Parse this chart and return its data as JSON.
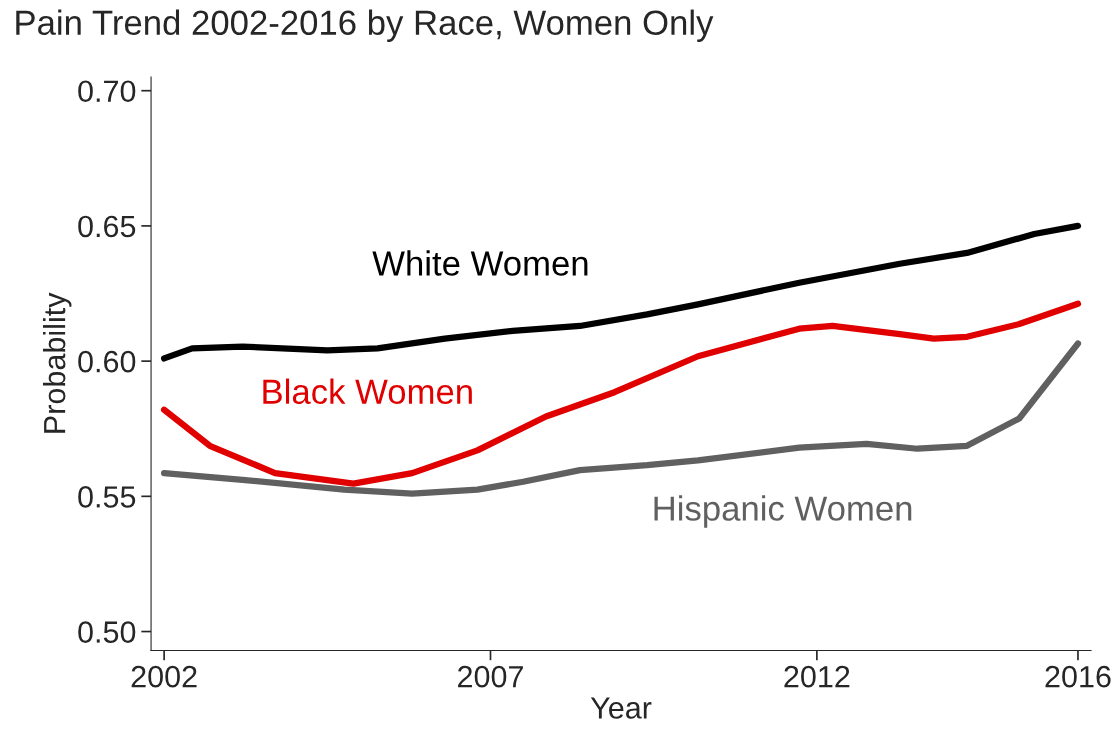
{
  "chart_data": {
    "type": "line",
    "title": "Pain Trend 2002-2016 by Race, Women Only",
    "xlabel": "Year",
    "ylabel": "Probability",
    "xlim": [
      2001.8,
      2016.2
    ],
    "xticks": [
      2002,
      2007,
      2012,
      2016
    ],
    "ylim": [
      0.493,
      0.705
    ],
    "yticks": [
      {
        "value": 0.5,
        "label": "0.50"
      },
      {
        "value": 0.55,
        "label": "0.55"
      },
      {
        "value": 0.6,
        "label": "0.60"
      },
      {
        "value": 0.65,
        "label": "0.65"
      },
      {
        "value": 0.7,
        "label": "0.70"
      }
    ],
    "grid": false,
    "legend": false,
    "marker": "none",
    "line_style": "solid",
    "series": [
      {
        "name": "White Women",
        "color": "#000000",
        "x": [
          2002,
          2002.43,
          2003.2,
          2004.5,
          2005.27,
          2006.3,
          2007.34,
          2008.37,
          2009.4,
          2010.18,
          2011.73,
          2013.27,
          2014.3,
          2015.33,
          2016
        ],
        "values": [
          0.601,
          0.6047,
          0.6054,
          0.604,
          0.6047,
          0.6083,
          0.6112,
          0.613,
          0.6173,
          0.621,
          0.629,
          0.636,
          0.64,
          0.647,
          0.65
        ]
      },
      {
        "name": "Black Women",
        "color": "#e00000",
        "x": [
          2002,
          2002.7,
          2003.7,
          2004.9,
          2005.8,
          2006.8,
          2007.85,
          2008.9,
          2010.18,
          2011.73,
          2012.24,
          2013.27,
          2013.79,
          2014.3,
          2015.1,
          2016
        ],
        "values": [
          0.582,
          0.5687,
          0.5586,
          0.5547,
          0.5586,
          0.567,
          0.5795,
          0.5885,
          0.6018,
          0.612,
          0.613,
          0.61,
          0.6083,
          0.609,
          0.6137,
          0.6212
        ]
      },
      {
        "name": "Hispanic Women",
        "color": "#606060",
        "x": [
          2002,
          2003.2,
          2004.76,
          2005.8,
          2006.8,
          2007.5,
          2008.37,
          2009.4,
          2010.18,
          2011.73,
          2012.76,
          2013.54,
          2014.3,
          2015.1,
          2016
        ],
        "values": [
          0.5586,
          0.5561,
          0.5525,
          0.551,
          0.5525,
          0.5554,
          0.5597,
          0.5615,
          0.5633,
          0.568,
          0.5694,
          0.5676,
          0.5687,
          0.5788,
          0.6065
        ]
      }
    ]
  }
}
